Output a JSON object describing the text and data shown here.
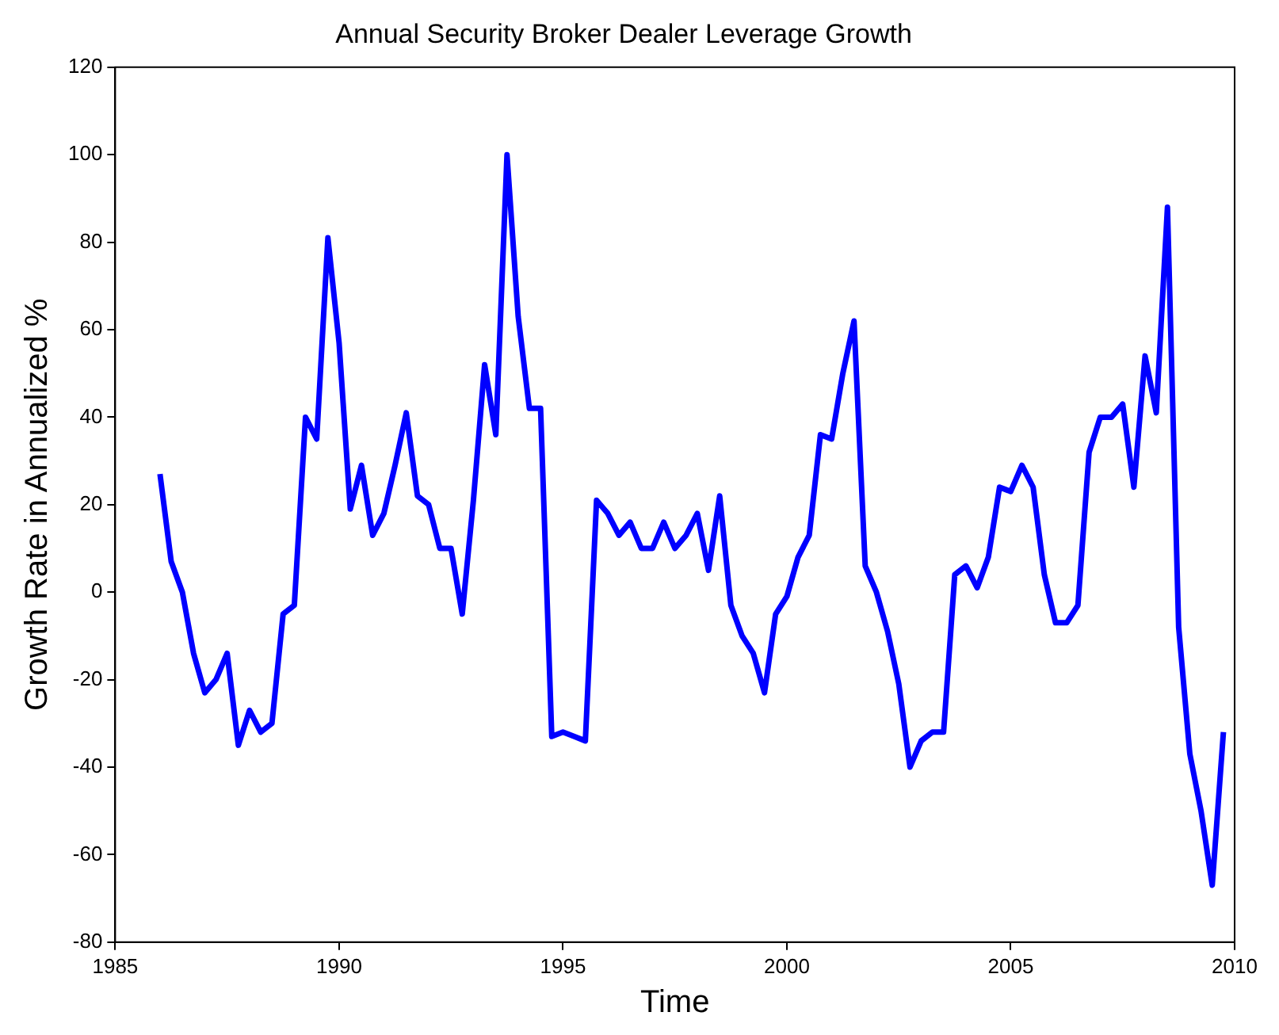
{
  "chart_data": {
    "type": "line",
    "title": "Annual Security Broker Dealer Leverage Growth",
    "xlabel": "Time",
    "ylabel": "Growth Rate in Annualized %",
    "x": [
      1986,
      1986.25,
      1986.5,
      1986.75,
      1987,
      1987.25,
      1987.5,
      1987.75,
      1988,
      1988.25,
      1988.5,
      1988.75,
      1989,
      1989.25,
      1989.5,
      1989.75,
      1990,
      1990.25,
      1990.5,
      1990.75,
      1991,
      1991.25,
      1991.5,
      1991.75,
      1992,
      1992.25,
      1992.5,
      1992.75,
      1993,
      1993.25,
      1993.5,
      1993.75,
      1994,
      1994.25,
      1994.5,
      1994.75,
      1995,
      1995.25,
      1995.5,
      1995.75,
      1996,
      1996.25,
      1996.5,
      1996.75,
      1997,
      1997.25,
      1997.5,
      1997.75,
      1998,
      1998.25,
      1998.5,
      1998.75,
      1999,
      1999.25,
      1999.5,
      1999.75,
      2000,
      2000.25,
      2000.5,
      2000.75,
      2001,
      2001.25,
      2001.5,
      2001.75,
      2002,
      2002.25,
      2002.5,
      2002.75,
      2003,
      2003.25,
      2003.5,
      2003.75,
      2004,
      2004.25,
      2004.5,
      2004.75,
      2005,
      2005.25,
      2005.5,
      2005.75,
      2006,
      2006.25,
      2006.5,
      2006.75,
      2007,
      2007.25,
      2007.5,
      2007.75,
      2008,
      2008.25,
      2008.5,
      2008.75,
      2009,
      2009.25,
      2009.5,
      2009.75
    ],
    "series": [
      {
        "color": "#0000ff",
        "values": [
          27,
          7,
          0,
          -14,
          -23,
          -20,
          -14,
          -35,
          -27,
          -32,
          -30,
          -5,
          -3,
          40,
          35,
          81,
          57,
          19,
          29,
          13,
          18,
          29,
          41,
          22,
          20,
          10,
          10,
          -5,
          21,
          52,
          36,
          100,
          63,
          42,
          42,
          -33,
          -32,
          -33,
          -34,
          21,
          18,
          13,
          16,
          10,
          10,
          16,
          10,
          13,
          18,
          5,
          22,
          -3,
          -10,
          -14,
          -23,
          -5,
          -1,
          8,
          13,
          36,
          35,
          50,
          62,
          6,
          0,
          -9,
          -21,
          -40,
          -34,
          -32,
          -32,
          4,
          6,
          1,
          8,
          24,
          23,
          29,
          24,
          4,
          -7,
          -7,
          -3,
          32,
          40,
          40,
          43,
          24,
          54,
          41,
          88,
          -8,
          -37,
          -50,
          -67,
          -32
        ]
      }
    ],
    "xlim": [
      1985,
      2010
    ],
    "xticks": [
      1985,
      1990,
      1995,
      2000,
      2005,
      2010
    ],
    "ylim": [
      -80,
      120
    ],
    "yticks": [
      -80,
      -60,
      -40,
      -20,
      0,
      20,
      40,
      60,
      80,
      100,
      120
    ],
    "grid": false,
    "legend": false,
    "marker": "none",
    "line_style": "solid"
  }
}
